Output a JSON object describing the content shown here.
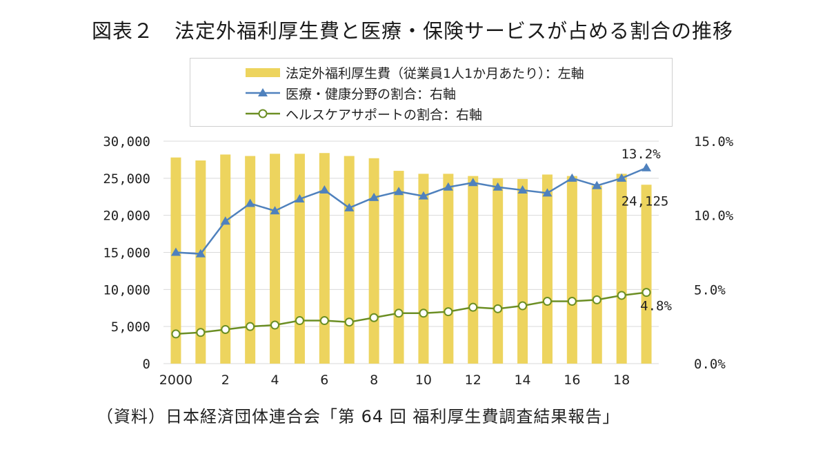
{
  "title": "図表２　法定外福利厚生費と医療・保険サービスが占める割合の推移",
  "source": "（資料）日本経済団体連合会「第 64 回 福利厚生費調査結果報告」",
  "colors": {
    "bar": "#EDD45E",
    "line_blue": "#4F81BD",
    "line_green": "#6B8E23",
    "marker_fill_green": "#ffffff",
    "grid": "#D9D9D9"
  },
  "chart_data": {
    "type": "bar",
    "x": [
      2000,
      2001,
      2002,
      2003,
      2004,
      2005,
      2006,
      2007,
      2008,
      2009,
      2010,
      2011,
      2012,
      2013,
      2014,
      2015,
      2016,
      2017,
      2018,
      2019
    ],
    "x_tick_labels": [
      "2000",
      "",
      "2",
      "",
      "4",
      "",
      "6",
      "",
      "8",
      "",
      "10",
      "",
      "12",
      "",
      "14",
      "",
      "16",
      "",
      "18",
      ""
    ],
    "y_left": {
      "ylim": [
        0,
        30000
      ],
      "ticks": [
        "0",
        "5,000",
        "10,000",
        "15,000",
        "20,000",
        "25,000",
        "30,000"
      ]
    },
    "y_right": {
      "ylim": [
        0,
        15
      ],
      "ticks": [
        "0.0%",
        "5.0%",
        "10.0%",
        "15.0%"
      ]
    },
    "grid": true,
    "legend_position": "top",
    "series": [
      {
        "name": "法定外福利厚生費（従業員1人1か月あたり）：左軸",
        "kind": "bar",
        "axis": "left",
        "values": [
          27800,
          27400,
          28200,
          28000,
          28300,
          28300,
          28400,
          28000,
          27700,
          26000,
          25600,
          25600,
          25300,
          25000,
          24900,
          25500,
          25300,
          24000,
          25600,
          24125
        ]
      },
      {
        "name": "医療・健康分野の割合：右軸",
        "kind": "line",
        "axis": "right",
        "marker": "triangle",
        "values": [
          7.5,
          7.4,
          9.6,
          10.8,
          10.3,
          11.1,
          11.7,
          10.5,
          11.2,
          11.6,
          11.3,
          11.9,
          12.2,
          11.9,
          11.7,
          11.5,
          12.5,
          12.0,
          12.5,
          13.2
        ]
      },
      {
        "name": "ヘルスケアサポートの割合：右軸",
        "kind": "line",
        "axis": "right",
        "marker": "circle",
        "values": [
          2.0,
          2.1,
          2.3,
          2.5,
          2.6,
          2.9,
          2.9,
          2.8,
          3.1,
          3.4,
          3.4,
          3.5,
          3.8,
          3.7,
          3.9,
          4.2,
          4.2,
          4.3,
          4.6,
          4.8
        ]
      }
    ],
    "annotations": [
      "13.2%",
      "24,125",
      "4.8%"
    ]
  }
}
